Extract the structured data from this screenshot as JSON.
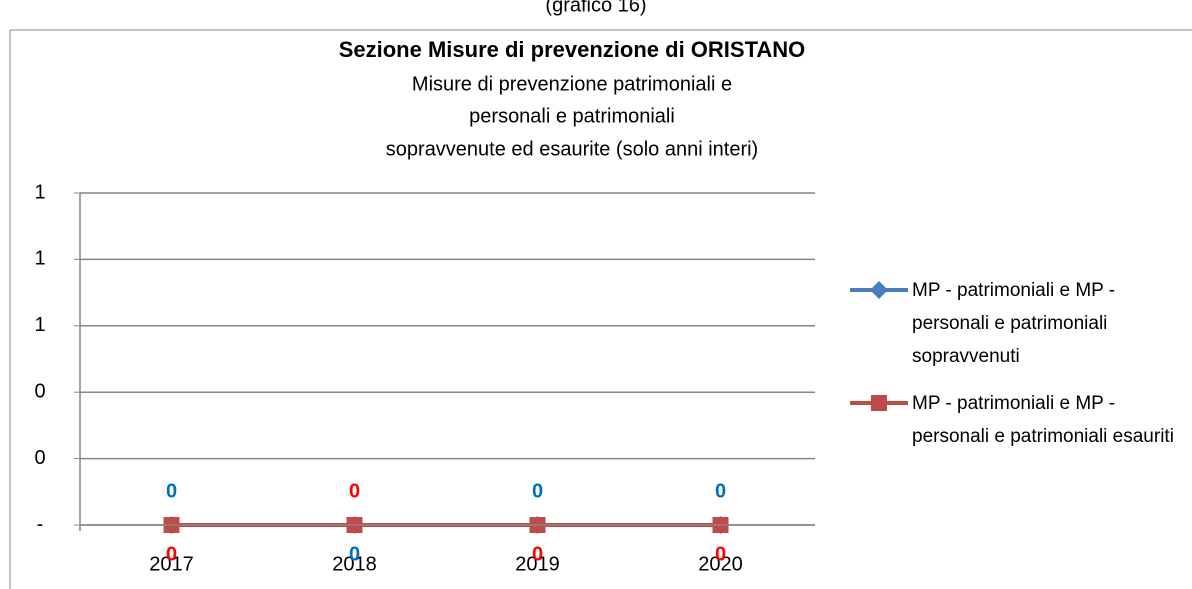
{
  "caption": "(grafico 16)",
  "chart_data": {
    "type": "line",
    "title": "Sezione Misure di prevenzione di ORISTANO",
    "subtitle": [
      "Misure di prevenzione patrimoniali e",
      "personali e patrimoniali",
      "sopravvenute ed esaurite (solo anni interi)"
    ],
    "categories": [
      "2017",
      "2018",
      "2019",
      "2020"
    ],
    "series": [
      {
        "name": "MP - patrimoniali e MP - personali e patrimoniali sopravvenuti",
        "color": "#4a7ebb",
        "marker": "diamond",
        "label_color": "#0070c0",
        "values": [
          0,
          0,
          0,
          0
        ]
      },
      {
        "name": "MP - patrimoniali e MP - personali e patrimoniali esauriti",
        "color": "#be4b48",
        "marker": "square",
        "label_color": "#ff0000",
        "values": [
          0,
          0,
          0,
          0
        ]
      }
    ],
    "ylim": [
      0,
      1
    ],
    "yticks": [
      {
        "value": 0,
        "label": "-"
      },
      {
        "value": 0.2,
        "label": "0"
      },
      {
        "value": 0.4,
        "label": "0"
      },
      {
        "value": 0.6,
        "label": "1"
      },
      {
        "value": 0.8,
        "label": "1"
      },
      {
        "value": 1,
        "label": "1"
      }
    ],
    "grid": true,
    "legend": "right"
  }
}
